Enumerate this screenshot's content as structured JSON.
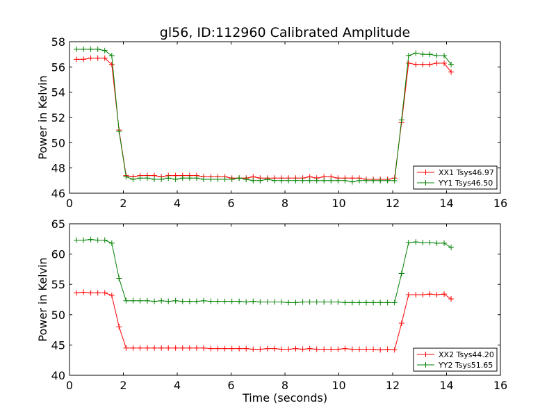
{
  "title": "gl56, ID:112960 Calibrated Amplitude",
  "colors": {
    "red": "#ff0000",
    "green": "#008000"
  },
  "chart_data": [
    {
      "type": "line",
      "title": "gl56, ID:112960 Calibrated Amplitude",
      "xlabel": "",
      "ylabel": "Power in Kelvin",
      "xlim": [
        0,
        16
      ],
      "ylim": [
        46,
        58
      ],
      "xticks": [
        0,
        2,
        4,
        6,
        8,
        10,
        12,
        14,
        16
      ],
      "yticks": [
        46,
        48,
        50,
        52,
        54,
        56,
        58
      ],
      "legend_position": "lower-right",
      "marker": "+",
      "x": [
        0.26,
        0.52,
        0.79,
        1.05,
        1.31,
        1.57,
        1.84,
        2.1,
        2.36,
        2.62,
        2.89,
        3.15,
        3.41,
        3.67,
        3.94,
        4.2,
        4.46,
        4.72,
        4.98,
        5.25,
        5.51,
        5.77,
        6.03,
        6.3,
        6.56,
        6.82,
        7.08,
        7.35,
        7.61,
        7.87,
        8.13,
        8.4,
        8.66,
        8.92,
        9.18,
        9.45,
        9.71,
        9.97,
        10.23,
        10.5,
        10.76,
        11.02,
        11.28,
        11.54,
        11.81,
        12.07,
        12.33,
        12.59,
        12.86,
        13.12,
        13.38,
        13.64,
        13.91,
        14.17
      ],
      "series": [
        {
          "name": "XX1 Tsys46.97",
          "color": "#ff0000",
          "values": [
            56.6,
            56.6,
            56.7,
            56.7,
            56.7,
            56.2,
            51.0,
            47.4,
            47.3,
            47.4,
            47.4,
            47.4,
            47.3,
            47.4,
            47.4,
            47.4,
            47.4,
            47.4,
            47.3,
            47.3,
            47.3,
            47.3,
            47.2,
            47.2,
            47.2,
            47.3,
            47.2,
            47.2,
            47.2,
            47.2,
            47.2,
            47.2,
            47.2,
            47.3,
            47.2,
            47.3,
            47.3,
            47.2,
            47.2,
            47.2,
            47.2,
            47.1,
            47.1,
            47.1,
            47.1,
            47.2,
            51.6,
            56.3,
            56.2,
            56.2,
            56.2,
            56.3,
            56.3,
            55.6
          ]
        },
        {
          "name": "YY1 Tsys46.50",
          "color": "#008000",
          "values": [
            57.4,
            57.4,
            57.4,
            57.4,
            57.3,
            56.9,
            50.9,
            47.3,
            47.1,
            47.2,
            47.2,
            47.1,
            47.1,
            47.2,
            47.1,
            47.2,
            47.2,
            47.2,
            47.1,
            47.1,
            47.1,
            47.1,
            47.1,
            47.2,
            47.1,
            47.0,
            47.0,
            47.1,
            47.0,
            47.0,
            47.0,
            47.0,
            47.0,
            47.0,
            47.0,
            47.0,
            47.0,
            47.0,
            47.0,
            46.9,
            47.0,
            47.0,
            47.0,
            47.0,
            47.0,
            47.0,
            51.8,
            56.9,
            57.1,
            57.0,
            57.0,
            56.9,
            56.9,
            56.2
          ]
        }
      ]
    },
    {
      "type": "line",
      "title": "",
      "xlabel": "Time (seconds)",
      "ylabel": "Power in Kelvin",
      "xlim": [
        0,
        16
      ],
      "ylim": [
        40,
        65
      ],
      "xticks": [
        0,
        2,
        4,
        6,
        8,
        10,
        12,
        14,
        16
      ],
      "yticks": [
        40,
        45,
        50,
        55,
        60,
        65
      ],
      "legend_position": "lower-right",
      "marker": "+",
      "x": [
        0.26,
        0.52,
        0.79,
        1.05,
        1.31,
        1.57,
        1.84,
        2.1,
        2.36,
        2.62,
        2.89,
        3.15,
        3.41,
        3.67,
        3.94,
        4.2,
        4.46,
        4.72,
        4.98,
        5.25,
        5.51,
        5.77,
        6.03,
        6.3,
        6.56,
        6.82,
        7.08,
        7.35,
        7.61,
        7.87,
        8.13,
        8.4,
        8.66,
        8.92,
        9.18,
        9.45,
        9.71,
        9.97,
        10.23,
        10.5,
        10.76,
        11.02,
        11.28,
        11.54,
        11.81,
        12.07,
        12.33,
        12.59,
        12.86,
        13.12,
        13.38,
        13.64,
        13.91,
        14.17
      ],
      "series": [
        {
          "name": "XX2 Tsys44.20",
          "color": "#ff0000",
          "values": [
            53.6,
            53.7,
            53.6,
            53.6,
            53.6,
            53.2,
            48.0,
            44.5,
            44.5,
            44.5,
            44.5,
            44.5,
            44.5,
            44.5,
            44.5,
            44.5,
            44.5,
            44.5,
            44.5,
            44.4,
            44.4,
            44.4,
            44.4,
            44.4,
            44.4,
            44.3,
            44.3,
            44.4,
            44.4,
            44.3,
            44.3,
            44.4,
            44.3,
            44.4,
            44.3,
            44.3,
            44.3,
            44.3,
            44.4,
            44.3,
            44.3,
            44.3,
            44.3,
            44.2,
            44.3,
            44.2,
            48.6,
            53.3,
            53.3,
            53.3,
            53.4,
            53.3,
            53.4,
            52.6
          ]
        },
        {
          "name": "YY2 Tsys51.65",
          "color": "#008000",
          "values": [
            62.3,
            62.3,
            62.4,
            62.3,
            62.3,
            61.8,
            56.0,
            52.3,
            52.3,
            52.3,
            52.3,
            52.2,
            52.3,
            52.2,
            52.3,
            52.2,
            52.2,
            52.2,
            52.3,
            52.2,
            52.2,
            52.2,
            52.2,
            52.2,
            52.1,
            52.2,
            52.1,
            52.1,
            52.1,
            52.1,
            52.0,
            52.0,
            52.1,
            52.1,
            52.1,
            52.1,
            52.1,
            52.1,
            52.0,
            52.0,
            52.0,
            52.0,
            52.0,
            52.0,
            52.0,
            52.0,
            56.8,
            61.9,
            62.0,
            61.9,
            61.9,
            61.8,
            61.8,
            61.1
          ]
        }
      ]
    }
  ]
}
